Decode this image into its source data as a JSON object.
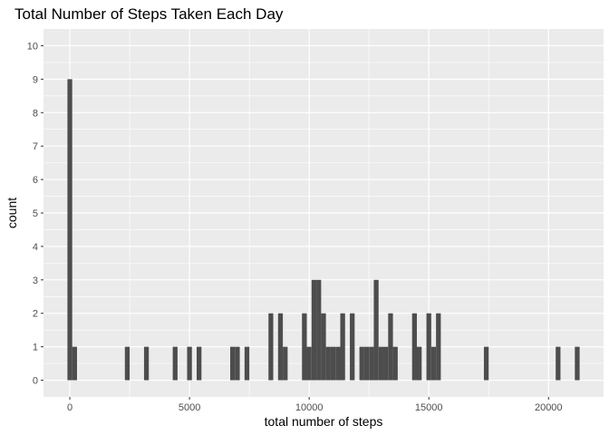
{
  "chart_data": {
    "type": "bar",
    "title": "Total Number of Steps Taken Each Day",
    "xlabel": "total number of steps",
    "ylabel": "count",
    "xlim": [
      -1100,
      22300
    ],
    "ylim": [
      -0.5,
      10.5
    ],
    "x_ticks": [
      0,
      5000,
      10000,
      15000,
      20000
    ],
    "x_tick_labels": [
      "0",
      "5000",
      "10000",
      "15000",
      "20000"
    ],
    "y_ticks": [
      0,
      1,
      2,
      3,
      4,
      5,
      6,
      7,
      8,
      9,
      10
    ],
    "y_tick_labels": [
      "0",
      "1",
      "2",
      "3",
      "4",
      "5",
      "6",
      "7",
      "8",
      "9",
      "10"
    ],
    "bin_width": 200,
    "grid": true,
    "bar_color": "#4d4d4d",
    "panel_color": "#ebebeb",
    "bins": [
      {
        "x": 0,
        "count": 9
      },
      {
        "x": 200,
        "count": 1
      },
      {
        "x": 2400,
        "count": 1
      },
      {
        "x": 3200,
        "count": 1
      },
      {
        "x": 4400,
        "count": 1
      },
      {
        "x": 5000,
        "count": 1
      },
      {
        "x": 5400,
        "count": 1
      },
      {
        "x": 6800,
        "count": 1
      },
      {
        "x": 7000,
        "count": 1
      },
      {
        "x": 7400,
        "count": 1
      },
      {
        "x": 8400,
        "count": 2
      },
      {
        "x": 8800,
        "count": 2
      },
      {
        "x": 9000,
        "count": 1
      },
      {
        "x": 9800,
        "count": 2
      },
      {
        "x": 10000,
        "count": 1
      },
      {
        "x": 10200,
        "count": 3
      },
      {
        "x": 10400,
        "count": 3
      },
      {
        "x": 10600,
        "count": 2
      },
      {
        "x": 10800,
        "count": 1
      },
      {
        "x": 11000,
        "count": 1
      },
      {
        "x": 11200,
        "count": 1
      },
      {
        "x": 11400,
        "count": 2
      },
      {
        "x": 11800,
        "count": 2
      },
      {
        "x": 12200,
        "count": 1
      },
      {
        "x": 12400,
        "count": 1
      },
      {
        "x": 12600,
        "count": 1
      },
      {
        "x": 12800,
        "count": 3
      },
      {
        "x": 13000,
        "count": 1
      },
      {
        "x": 13200,
        "count": 1
      },
      {
        "x": 13400,
        "count": 2
      },
      {
        "x": 13600,
        "count": 1
      },
      {
        "x": 14400,
        "count": 2
      },
      {
        "x": 14600,
        "count": 1
      },
      {
        "x": 15000,
        "count": 2
      },
      {
        "x": 15200,
        "count": 1
      },
      {
        "x": 15400,
        "count": 2
      },
      {
        "x": 17400,
        "count": 1
      },
      {
        "x": 20400,
        "count": 1
      },
      {
        "x": 21200,
        "count": 1
      }
    ]
  }
}
